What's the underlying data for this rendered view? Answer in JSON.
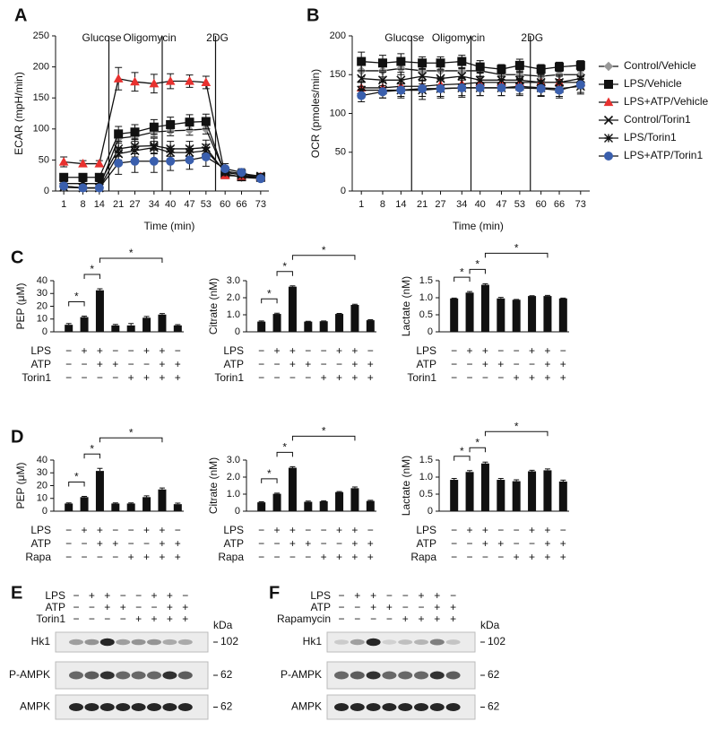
{
  "chart_data": [
    {
      "type": "line",
      "panel": "A",
      "ylabel": "ECAR (mpH/min)",
      "xlabel": "Time (min)",
      "x": [
        1,
        8,
        14,
        21,
        27,
        34,
        40,
        47,
        53,
        60,
        66,
        73
      ],
      "xlim": [
        -2,
        76
      ],
      "xticks": [
        1,
        8,
        14,
        21,
        27,
        34,
        40,
        47,
        53,
        60,
        66,
        73
      ],
      "ylim": [
        0,
        250
      ],
      "yticks": [
        0,
        50,
        100,
        150,
        200,
        250
      ],
      "events": [
        {
          "x": 17.5,
          "label": "Glucose"
        },
        {
          "x": 37,
          "label": "Oligomycin"
        },
        {
          "x": 56.5,
          "label": "2DG"
        }
      ],
      "legend": "right",
      "series": [
        {
          "name": "Control/Vehicle",
          "color": "#999999",
          "marker": "diamond",
          "values": [
            8,
            5,
            5,
            85,
            88,
            95,
            97,
            98,
            100,
            28,
            22,
            20
          ],
          "errors": [
            3,
            3,
            3,
            8,
            8,
            8,
            8,
            8,
            8,
            4,
            3,
            3
          ]
        },
        {
          "name": "LPS/Vehicle",
          "color": "#111111",
          "marker": "square",
          "values": [
            22,
            22,
            22,
            92,
            95,
            103,
            107,
            111,
            112,
            27,
            23,
            22
          ],
          "errors": [
            3,
            3,
            3,
            12,
            12,
            12,
            12,
            12,
            12,
            4,
            3,
            3
          ]
        },
        {
          "name": "LPS+ATP/Vehicle",
          "color": "#e8312f",
          "marker": "triangle",
          "values": [
            47,
            44,
            44,
            181,
            176,
            173,
            177,
            177,
            175,
            25,
            24,
            23
          ],
          "errors": [
            8,
            5,
            5,
            18,
            15,
            15,
            12,
            10,
            10,
            5,
            4,
            4
          ]
        },
        {
          "name": "Control/Torin1",
          "color": "#aaaaaa",
          "marker": "x",
          "values": [
            6,
            5,
            5,
            60,
            65,
            70,
            62,
            62,
            65,
            32,
            28,
            24
          ],
          "errors": [
            3,
            3,
            3,
            10,
            10,
            10,
            10,
            10,
            10,
            5,
            4,
            4
          ]
        },
        {
          "name": "LPS/Torin1",
          "color": "#111111",
          "marker": "star",
          "values": [
            12,
            12,
            12,
            68,
            72,
            73,
            68,
            68,
            70,
            30,
            26,
            22
          ],
          "errors": [
            3,
            3,
            3,
            12,
            12,
            12,
            12,
            12,
            12,
            5,
            4,
            4
          ]
        },
        {
          "name": "LPS+ATP/Torin1",
          "color": "#3a5fad",
          "marker": "circle",
          "values": [
            8,
            5,
            5,
            45,
            48,
            48,
            48,
            50,
            55,
            36,
            30,
            20
          ],
          "errors": [
            5,
            4,
            4,
            18,
            18,
            18,
            15,
            15,
            15,
            8,
            6,
            4
          ]
        }
      ]
    },
    {
      "type": "line",
      "panel": "B",
      "ylabel": "OCR (pmoles/min)",
      "xlabel": "Time (min)",
      "x": [
        1,
        8,
        14,
        21,
        27,
        34,
        40,
        47,
        53,
        60,
        66,
        73
      ],
      "xlim": [
        -2,
        76
      ],
      "xticks": [
        1,
        8,
        14,
        21,
        27,
        34,
        40,
        47,
        53,
        60,
        66,
        73
      ],
      "ylim": [
        0,
        200
      ],
      "yticks": [
        0,
        50,
        100,
        150,
        200
      ],
      "events": [
        {
          "x": 17.5,
          "label": "Glucose"
        },
        {
          "x": 37,
          "label": "Oligomycin"
        },
        {
          "x": 56.5,
          "label": "2DG"
        }
      ],
      "series": [
        {
          "color": "#999999",
          "marker": "diamond",
          "values": [
            155,
            155,
            158,
            155,
            155,
            155,
            155,
            150,
            150,
            148,
            150,
            150
          ],
          "errors": [
            8,
            8,
            8,
            8,
            8,
            8,
            8,
            6,
            6,
            6,
            6,
            6
          ]
        },
        {
          "color": "#111111",
          "marker": "square",
          "values": [
            167,
            165,
            167,
            165,
            165,
            167,
            160,
            157,
            162,
            157,
            160,
            162
          ],
          "errors": [
            12,
            10,
            10,
            8,
            8,
            8,
            8,
            6,
            8,
            6,
            6,
            6
          ]
        },
        {
          "color": "#e8312f",
          "marker": "triangle",
          "values": [
            133,
            133,
            135,
            135,
            137,
            138,
            140,
            140,
            140,
            140,
            140,
            140
          ],
          "errors": [
            8,
            8,
            8,
            8,
            8,
            8,
            8,
            8,
            8,
            8,
            8,
            8
          ]
        },
        {
          "color": "#aaaaaa",
          "marker": "x",
          "values": [
            145,
            143,
            143,
            148,
            145,
            148,
            143,
            143,
            143,
            140,
            140,
            145
          ],
          "errors": [
            10,
            10,
            10,
            10,
            10,
            10,
            10,
            10,
            10,
            10,
            10,
            10
          ]
        },
        {
          "color": "#111111",
          "marker": "star",
          "values": [
            130,
            130,
            130,
            130,
            132,
            133,
            133,
            133,
            135,
            133,
            132,
            135
          ],
          "errors": [
            10,
            10,
            10,
            12,
            12,
            12,
            10,
            10,
            10,
            10,
            10,
            10
          ]
        },
        {
          "color": "#3a5fad",
          "marker": "circle",
          "values": [
            123,
            128,
            130,
            132,
            132,
            133,
            133,
            133,
            133,
            132,
            130,
            137
          ],
          "errors": [
            8,
            8,
            8,
            10,
            10,
            10,
            10,
            10,
            10,
            10,
            10,
            10
          ]
        }
      ]
    },
    {
      "type": "bar",
      "panel": "C",
      "ylabel": "PEP (μM)",
      "color": "#111111",
      "values": [
        5.5,
        11.5,
        32.5,
        5,
        5,
        11,
        13.5,
        5
      ],
      "errors": [
        1,
        0.8,
        1.2,
        0.8,
        1.5,
        1,
        0.8,
        0.6
      ],
      "ylim": [
        0,
        40
      ],
      "yticks": [
        0,
        10,
        20,
        30,
        40
      ],
      "conditions": [
        {
          "name": "LPS",
          "signs": [
            "−",
            "+",
            "+",
            "−",
            "−",
            "+",
            "+",
            "−"
          ]
        },
        {
          "name": "ATP",
          "signs": [
            "−",
            "−",
            "+",
            "+",
            "−",
            "−",
            "+",
            "+"
          ]
        },
        {
          "name": "Torin1",
          "signs": [
            "−",
            "−",
            "−",
            "−",
            "+",
            "+",
            "+",
            "+"
          ]
        }
      ],
      "significance": [
        {
          "from": 0,
          "to": 1,
          "label": "*"
        },
        {
          "from": 1,
          "to": 2,
          "label": "*"
        },
        {
          "from": 2,
          "to": 6,
          "label": "*"
        }
      ]
    },
    {
      "type": "bar",
      "ylabel": "Citrate (nM)",
      "color": "#111111",
      "values": [
        0.6,
        1.05,
        2.65,
        0.6,
        0.62,
        1.05,
        1.58,
        0.68
      ],
      "errors": [
        0.04,
        0.04,
        0.05,
        0.02,
        0.02,
        0.03,
        0.04,
        0.03
      ],
      "ylim": [
        0,
        3
      ],
      "yticks": [
        0,
        {
          "value": 1,
          "label": "1.0"
        },
        {
          "value": 2,
          "label": "2.0"
        },
        {
          "value": 3,
          "label": "3.0"
        }
      ],
      "conditions": [
        {
          "name": "LPS",
          "signs": [
            "−",
            "+",
            "+",
            "−",
            "−",
            "+",
            "+",
            "−"
          ]
        },
        {
          "name": "ATP",
          "signs": [
            "−",
            "−",
            "+",
            "+",
            "−",
            "−",
            "+",
            "+"
          ]
        },
        {
          "name": "Torin1",
          "signs": [
            "−",
            "−",
            "−",
            "−",
            "+",
            "+",
            "+",
            "+"
          ]
        }
      ],
      "significance": [
        {
          "from": 0,
          "to": 1,
          "label": "*"
        },
        {
          "from": 1,
          "to": 2,
          "label": "*"
        },
        {
          "from": 2,
          "to": 6,
          "label": "*"
        }
      ]
    },
    {
      "type": "bar",
      "ylabel": "Lactate (nM)",
      "color": "#111111",
      "values": [
        0.98,
        1.15,
        1.38,
        0.98,
        0.94,
        1.05,
        1.05,
        0.98
      ],
      "errors": [
        0.01,
        0.03,
        0.03,
        0.03,
        0.01,
        0.01,
        0.02,
        0.01
      ],
      "ylim": [
        0,
        1.5
      ],
      "yticks": [
        0,
        0.5,
        {
          "value": 1,
          "label": "1.0"
        },
        1.5
      ],
      "conditions": [
        {
          "name": "LPS",
          "signs": [
            "−",
            "+",
            "+",
            "−",
            "−",
            "+",
            "+",
            "−"
          ]
        },
        {
          "name": "ATP",
          "signs": [
            "−",
            "−",
            "+",
            "+",
            "−",
            "−",
            "+",
            "+"
          ]
        },
        {
          "name": "Torin1",
          "signs": [
            "−",
            "−",
            "−",
            "−",
            "+",
            "+",
            "+",
            "+"
          ]
        }
      ],
      "significance": [
        {
          "from": 0,
          "to": 1,
          "label": "*"
        },
        {
          "from": 1,
          "to": 2,
          "label": "*"
        },
        {
          "from": 2,
          "to": 6,
          "label": "*"
        }
      ]
    },
    {
      "type": "bar",
      "panel": "D",
      "ylabel": "PEP (μM)",
      "color": "#111111",
      "values": [
        6,
        11,
        31.5,
        6,
        6,
        11,
        17,
        5.5
      ],
      "errors": [
        0.5,
        0.6,
        2,
        0.5,
        0.5,
        1,
        1.2,
        0.8
      ],
      "ylim": [
        0,
        40
      ],
      "yticks": [
        0,
        10,
        20,
        30,
        40
      ],
      "conditions": [
        {
          "name": "LPS",
          "signs": [
            "−",
            "+",
            "+",
            "−",
            "−",
            "+",
            "+",
            "−"
          ]
        },
        {
          "name": "ATP",
          "signs": [
            "−",
            "−",
            "+",
            "+",
            "−",
            "−",
            "+",
            "+"
          ]
        },
        {
          "name": "Rapa",
          "signs": [
            "−",
            "−",
            "−",
            "−",
            "+",
            "+",
            "+",
            "+"
          ]
        }
      ],
      "significance": [
        {
          "from": 0,
          "to": 1,
          "label": "*"
        },
        {
          "from": 1,
          "to": 2,
          "label": "*"
        },
        {
          "from": 2,
          "to": 6,
          "label": "*"
        }
      ]
    },
    {
      "type": "bar",
      "ylabel": "Citrate (nM)",
      "color": "#111111",
      "values": [
        0.52,
        1.02,
        2.55,
        0.55,
        0.58,
        1.12,
        1.35,
        0.6
      ],
      "errors": [
        0.03,
        0.04,
        0.06,
        0.04,
        0.03,
        0.03,
        0.07,
        0.04
      ],
      "ylim": [
        0,
        3
      ],
      "yticks": [
        0,
        {
          "value": 1,
          "label": "1.0"
        },
        {
          "value": 2,
          "label": "2.0"
        },
        {
          "value": 3,
          "label": "3.0"
        }
      ],
      "conditions": [
        {
          "name": "LPS",
          "signs": [
            "−",
            "+",
            "+",
            "−",
            "−",
            "+",
            "+",
            "−"
          ]
        },
        {
          "name": "ATP",
          "signs": [
            "−",
            "−",
            "+",
            "+",
            "−",
            "−",
            "+",
            "+"
          ]
        },
        {
          "name": "Rapa",
          "signs": [
            "−",
            "−",
            "−",
            "−",
            "+",
            "+",
            "+",
            "+"
          ]
        }
      ],
      "significance": [
        {
          "from": 0,
          "to": 1,
          "label": "*"
        },
        {
          "from": 1,
          "to": 2,
          "label": "*"
        },
        {
          "from": 2,
          "to": 6,
          "label": "*"
        }
      ]
    },
    {
      "type": "bar",
      "ylabel": "Lactate (nM)",
      "color": "#111111",
      "values": [
        0.92,
        1.15,
        1.4,
        0.92,
        0.88,
        1.17,
        1.2,
        0.87
      ],
      "errors": [
        0.04,
        0.04,
        0.04,
        0.04,
        0.04,
        0.03,
        0.04,
        0.04
      ],
      "ylim": [
        0,
        1.5
      ],
      "yticks": [
        0,
        0.5,
        {
          "value": 1,
          "label": "1.0"
        },
        1.5
      ],
      "conditions": [
        {
          "name": "LPS",
          "signs": [
            "−",
            "+",
            "+",
            "−",
            "−",
            "+",
            "+",
            "−"
          ]
        },
        {
          "name": "ATP",
          "signs": [
            "−",
            "−",
            "+",
            "+",
            "−",
            "−",
            "+",
            "+"
          ]
        },
        {
          "name": "Rapa",
          "signs": [
            "−",
            "−",
            "−",
            "−",
            "+",
            "+",
            "+",
            "+"
          ]
        }
      ],
      "significance": [
        {
          "from": 0,
          "to": 1,
          "label": "*"
        },
        {
          "from": 1,
          "to": 2,
          "label": "*"
        },
        {
          "from": 2,
          "to": 6,
          "label": "*"
        }
      ]
    }
  ],
  "blots": [
    {
      "panel": "E",
      "unit": "kDa",
      "conditions": [
        {
          "name": "LPS",
          "signs": [
            "−",
            "+",
            "+",
            "−",
            "−",
            "+",
            "+",
            "−"
          ]
        },
        {
          "name": "ATP",
          "signs": [
            "−",
            "−",
            "+",
            "+",
            "−",
            "−",
            "+",
            "+"
          ]
        },
        {
          "name": "Torin1",
          "signs": [
            "−",
            "−",
            "−",
            "−",
            "+",
            "+",
            "+",
            "+"
          ]
        }
      ],
      "rows": [
        {
          "name": "Hk1",
          "size": "102"
        },
        {
          "name": "P-AMPK",
          "size": "62"
        },
        {
          "name": "AMPK",
          "size": "62"
        }
      ]
    },
    {
      "panel": "F",
      "unit": "kDa",
      "conditions": [
        {
          "name": "LPS",
          "signs": [
            "−",
            "+",
            "+",
            "−",
            "−",
            "+",
            "+",
            "−"
          ]
        },
        {
          "name": "ATP",
          "signs": [
            "−",
            "−",
            "+",
            "+",
            "−",
            "−",
            "+",
            "+"
          ]
        },
        {
          "name": "Rapamycin",
          "signs": [
            "−",
            "−",
            "−",
            "−",
            "+",
            "+",
            "+",
            "+"
          ]
        }
      ],
      "rows": [
        {
          "name": "Hk1",
          "size": "102"
        },
        {
          "name": "P-AMPK",
          "size": "62"
        },
        {
          "name": "AMPK",
          "size": "62"
        }
      ]
    }
  ]
}
